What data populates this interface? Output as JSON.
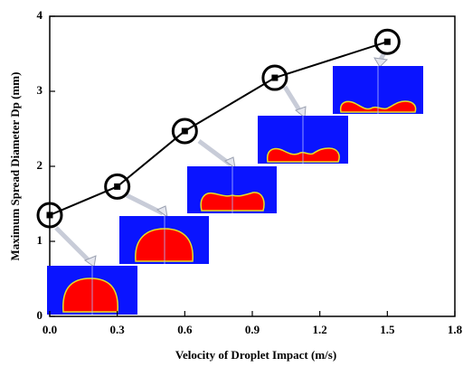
{
  "chart_data": {
    "type": "line",
    "xlabel": "Velocity of Droplet Impact (m/s)",
    "ylabel": "Maximum Spread Diameter Dp (mm)",
    "x": [
      0,
      0.3,
      0.6,
      1.0,
      1.5
    ],
    "series": [
      {
        "color": "#000000",
        "values": [
          1.35,
          1.73,
          2.47,
          3.18,
          3.66
        ]
      }
    ],
    "xlim": [
      0,
      1.8
    ],
    "xticks": [
      {
        "value": 0,
        "label": "0.0"
      },
      0.3,
      0.6,
      0.9,
      1.2,
      1.5,
      1.8
    ],
    "ylim": [
      0,
      4
    ],
    "yticks": [
      0,
      1,
      2,
      3,
      4
    ],
    "grid": false
  }
}
